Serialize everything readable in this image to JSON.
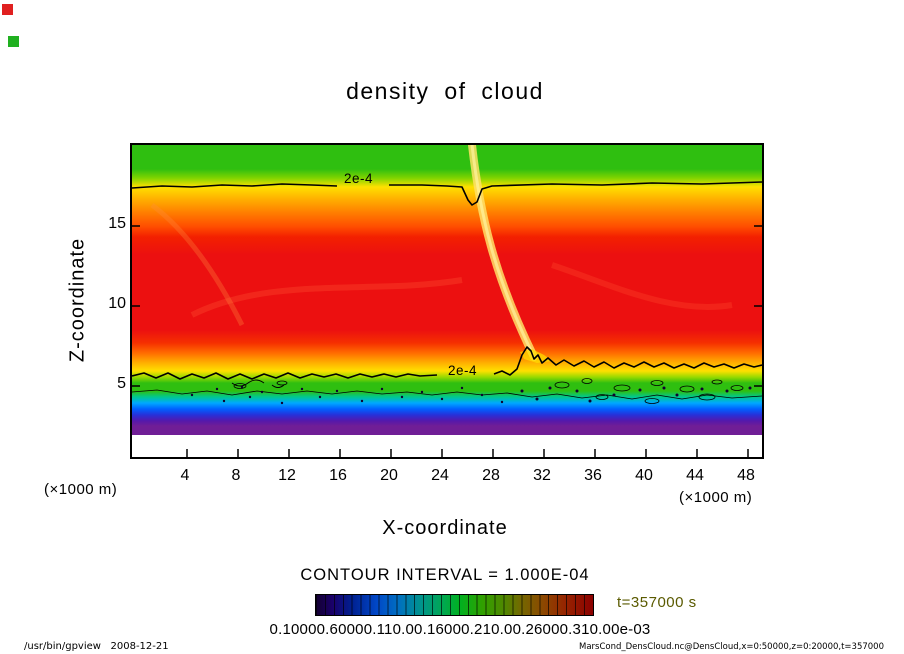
{
  "window": {
    "footer_left": "/usr/bin/gpview   2008-12-21",
    "footer_right": "MarsCond_DensCloud.nc@DensCloud,x=0:50000,z=0:20000,t=357000"
  },
  "plot": {
    "title": "density of cloud",
    "xlabel": "X-coordinate",
    "ylabel": "Z-coordinate",
    "x_unit_label": "(×1000 m)",
    "y_unit_label": "(×1000 m)",
    "x_tick_labels": [
      "4",
      "8",
      "12",
      "16",
      "20",
      "24",
      "28",
      "32",
      "36",
      "40",
      "44",
      "48"
    ],
    "y_tick_labels": [
      "15",
      "10",
      "5"
    ],
    "contour_label_top": "2e-4",
    "contour_label_bottom": "2e-4",
    "contour_interval_text": "CONTOUR INTERVAL = 1.000E-04",
    "time_label": "t=357000 s",
    "time_label_color": "#5a5a00",
    "colorbar_labels_visible": "0.10000.60000.110.00.16000.210.00.26000.310.00e-03"
  },
  "chart_data": {
    "type": "heatmap",
    "title": "density of cloud",
    "xlabel": "X-coordinate",
    "ylabel": "Z-coordinate",
    "axis_scale_note": "(×1000 m)",
    "x_ticks": [
      4,
      8,
      12,
      16,
      20,
      24,
      28,
      32,
      36,
      40,
      44,
      48
    ],
    "y_ticks": [
      5,
      10,
      15
    ],
    "x_range": [
      0,
      50
    ],
    "y_range": [
      0,
      20
    ],
    "time_seconds": 357000,
    "contour_interval": 0.0001,
    "labeled_contours": [
      0.0002
    ],
    "colorbar_levels": [
      0.0001,
      0.0006,
      0.0011,
      0.0016,
      0.0021,
      0.0026,
      0.0031
    ],
    "field_description": "Filled-contour cloud density field. Large red core (~3.1e-3) between z≈7 and z≈14 (×1000 m) spanning all x; 2e-4 contour runs near z≈17.7 (top, with a dip near x≈27) and near z≈5.8 (bottom, spiking up to z≈7 near x≈31); below the blue/purple bands (z<3.5) the field is ~0 (white). A pale diagonal low-density streak descends from (x≈27, z≈19) to (x≈31, z≈7).",
    "vertical_profile_estimate": [
      {
        "z": 19.5,
        "value": 0.00015
      },
      {
        "z": 17.7,
        "value": 0.0002
      },
      {
        "z": 16.5,
        "value": 0.0006
      },
      {
        "z": 15.0,
        "value": 0.0012
      },
      {
        "z": 12.0,
        "value": 0.003
      },
      {
        "z": 9.0,
        "value": 0.0031
      },
      {
        "z": 7.0,
        "value": 0.0024
      },
      {
        "z": 6.2,
        "value": 0.001
      },
      {
        "z": 5.8,
        "value": 0.0002
      },
      {
        "z": 5.0,
        "value": 0.0001
      },
      {
        "z": 4.2,
        "value": 5e-05
      },
      {
        "z": 3.6,
        "value": 2e-05
      },
      {
        "z": 3.0,
        "value": 0.0
      }
    ],
    "grid": false,
    "legend_position": "bottom-colorbar"
  }
}
